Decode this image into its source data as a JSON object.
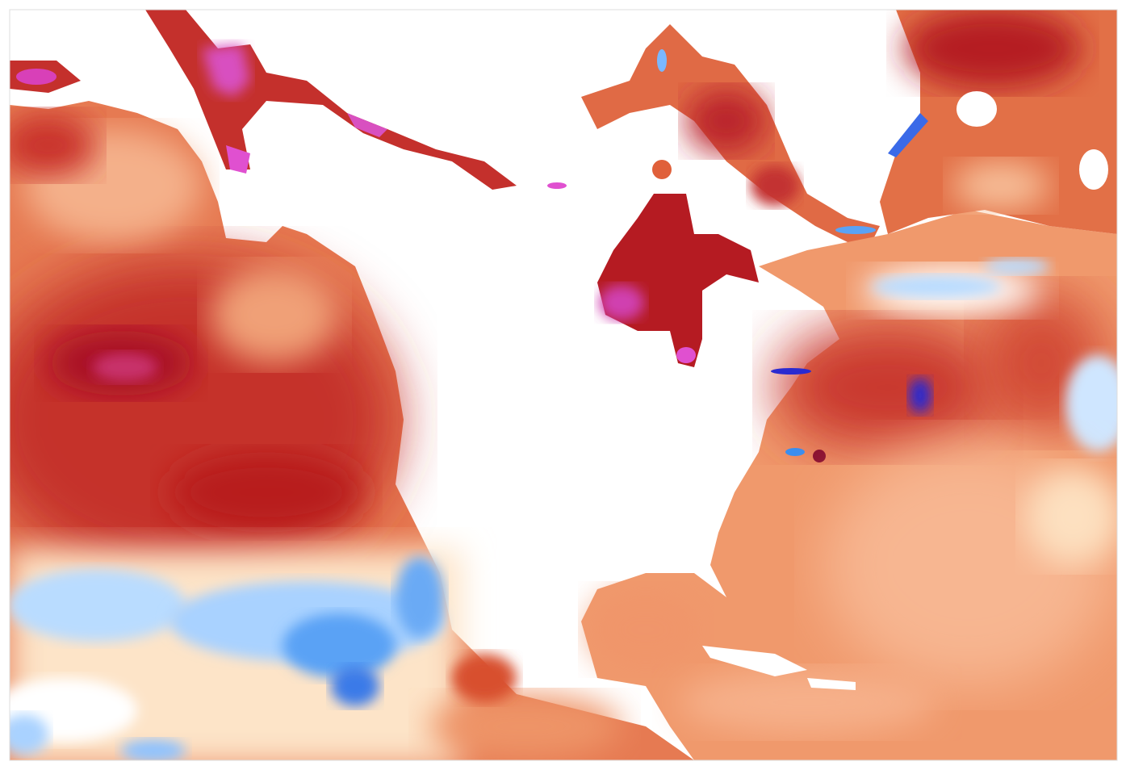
{
  "map": {
    "colors": {
      "land": "#ffffff",
      "frame": "#dddddd",
      "strong_warm": "#b5121b",
      "warm": "#e0603a",
      "mild_warm": "#f5a77c",
      "slight_warm": "#fde0c0",
      "neutral": "#ffffff",
      "cool": "#b7dcff",
      "strong_cool": "#3a8ef0",
      "extreme_warm": "#e040c8",
      "extreme_cool": "#2a2ad0"
    }
  }
}
